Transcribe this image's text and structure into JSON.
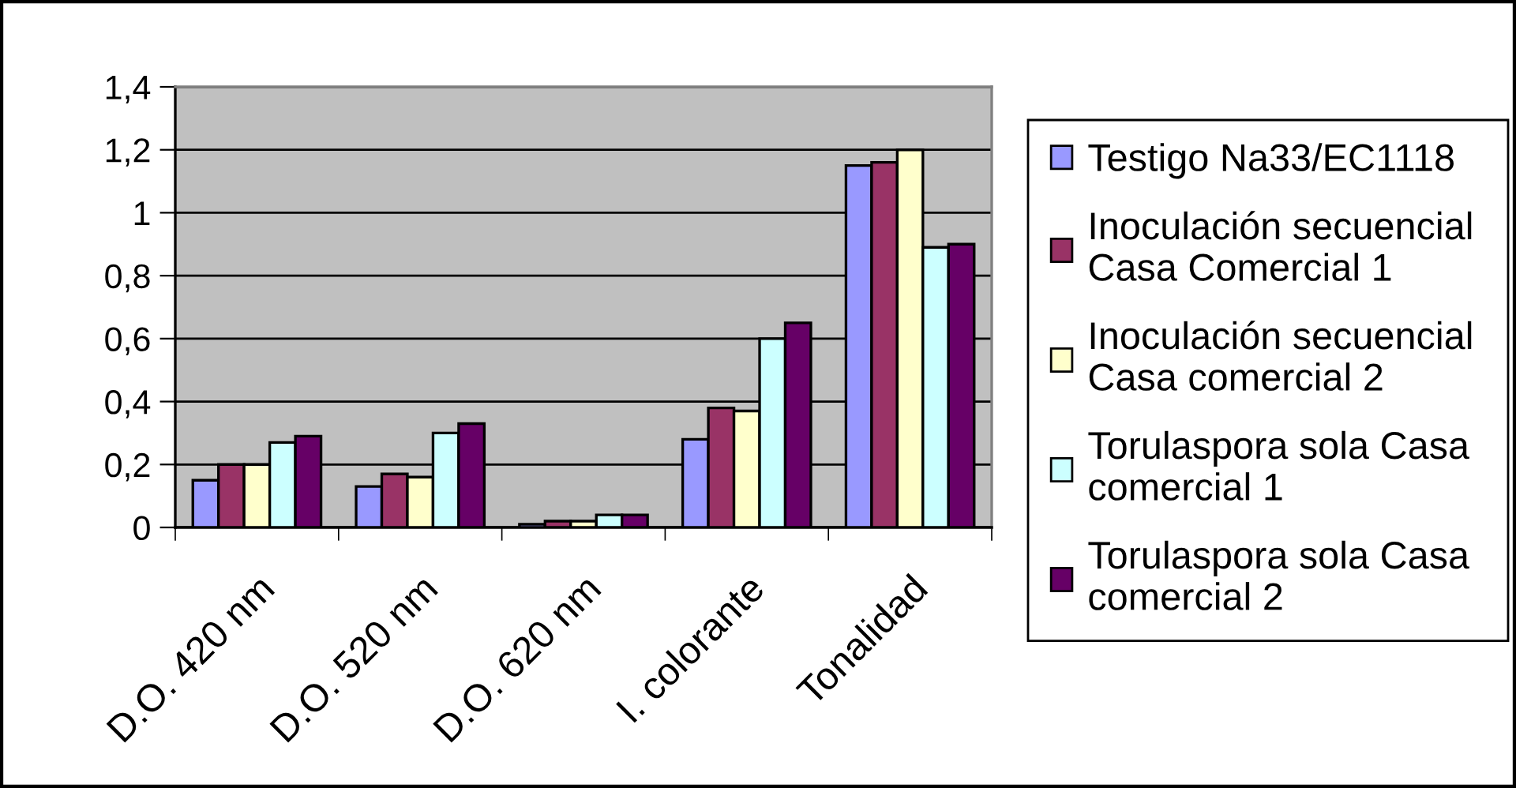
{
  "chart_data": {
    "type": "bar",
    "categories": [
      "D.O. 420 nm",
      "D.O. 520 nm",
      "D.O. 620 nm",
      "I. colorante",
      "Tonalidad"
    ],
    "series": [
      {
        "name": "Testigo Na33/EC1118",
        "color": "#9999ff",
        "values": [
          0.15,
          0.13,
          0.01,
          0.28,
          1.15
        ]
      },
      {
        "name": "Inoculación secuencial Casa Comercial 1",
        "color": "#993366",
        "values": [
          0.2,
          0.17,
          0.02,
          0.38,
          1.16
        ]
      },
      {
        "name": "Inoculación secuencial Casa comercial 2",
        "color": "#ffffcc",
        "values": [
          0.2,
          0.16,
          0.02,
          0.37,
          1.2
        ]
      },
      {
        "name": "Torulaspora sola Casa comercial 1",
        "color": "#ccffff",
        "values": [
          0.27,
          0.3,
          0.04,
          0.6,
          0.89
        ]
      },
      {
        "name": "Torulaspora sola Casa comercial 2",
        "color": "#660066",
        "values": [
          0.29,
          0.33,
          0.04,
          0.65,
          0.9
        ]
      }
    ],
    "ylim": [
      0,
      1.4
    ],
    "yticks": [
      0,
      {
        "value": 0.2,
        "label": "0,2"
      },
      {
        "value": 0.4,
        "label": "0,4"
      },
      {
        "value": 0.6,
        "label": "0,6"
      },
      {
        "value": 0.8,
        "label": "0,8"
      },
      1,
      {
        "value": 1.2,
        "label": "1,2"
      },
      {
        "value": 1.4,
        "label": "1,4"
      }
    ],
    "grid": "y",
    "legend": "right"
  }
}
